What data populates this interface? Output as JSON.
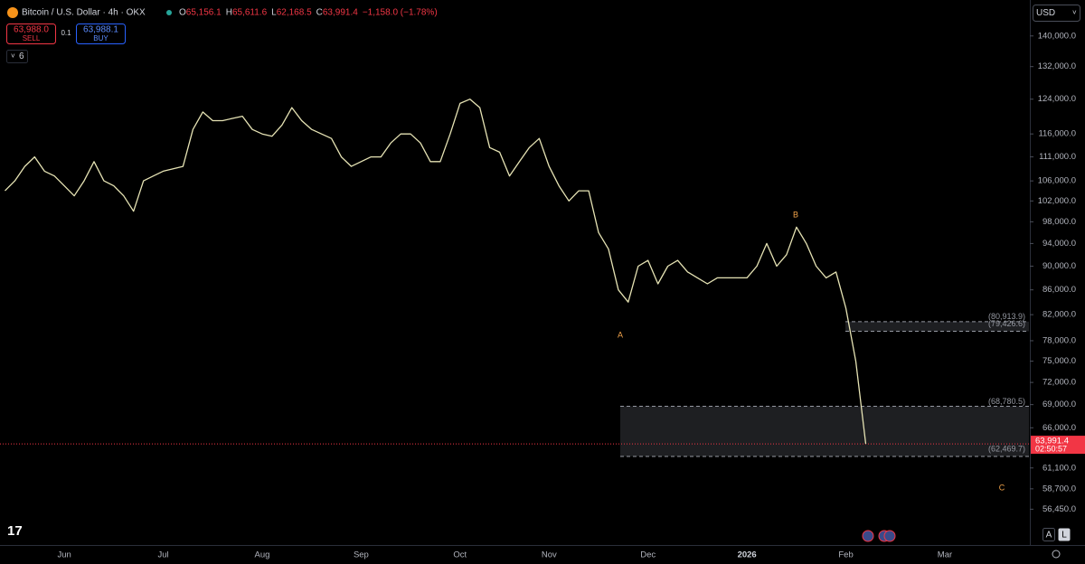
{
  "header": {
    "symbol": "Bitcoin / U.S. Dollar · 4h · OKX",
    "ohlc": [
      {
        "key": "O",
        "value": "65,156.1"
      },
      {
        "key": "H",
        "value": "65,611.6"
      },
      {
        "key": "L",
        "value": "62,168.5"
      },
      {
        "key": "C",
        "value": "63,991.4"
      }
    ],
    "change": "−1,158.0 (−1.78%)",
    "sell_price": "63,988.0",
    "sell": "SELL",
    "spread": "0.1",
    "buy_price": "63,988.1",
    "buy": "BUY",
    "indicators": "6",
    "currency": "USD",
    "buttons": [
      "A",
      "L"
    ]
  },
  "chart_data": {
    "type": "line",
    "log_scale": true,
    "grid": false,
    "color": "#e6e3b4",
    "categories": [
      null,
      null,
      null,
      null,
      null,
      null,
      "Jun",
      null,
      null,
      null,
      null,
      null,
      null,
      null,
      null,
      null,
      "Jul",
      null,
      null,
      null,
      null,
      null,
      null,
      null,
      null,
      null,
      "Aug",
      null,
      null,
      null,
      null,
      null,
      null,
      null,
      null,
      null,
      "Sep",
      null,
      null,
      null,
      null,
      null,
      null,
      null,
      null,
      null,
      "Oct",
      null,
      null,
      null,
      null,
      null,
      null,
      null,
      null,
      "Nov",
      null,
      null,
      null,
      null,
      null,
      null,
      null,
      null,
      null,
      "Dec",
      null,
      null,
      null,
      null,
      null,
      null,
      null,
      null,
      null,
      "2026",
      null,
      null,
      null,
      null,
      null,
      null,
      null,
      null,
      null,
      "Feb",
      null,
      null,
      null,
      null,
      null,
      null,
      null,
      null,
      null,
      "Mar",
      null,
      null,
      null,
      null,
      null,
      null,
      null,
      null
    ],
    "series": [
      {
        "name": "BTCUSD",
        "values": [
          104000,
          106000,
          109000,
          111000,
          108000,
          107000,
          105000,
          103000,
          106000,
          110000,
          106000,
          105000,
          103000,
          100000,
          106000,
          107000,
          108000,
          108500,
          109000,
          117000,
          121000,
          119000,
          119000,
          119500,
          120000,
          117000,
          116000,
          115500,
          118000,
          122000,
          119000,
          117000,
          116000,
          115000,
          111000,
          109000,
          110000,
          111000,
          111000,
          114000,
          116000,
          116000,
          114000,
          110000,
          110000,
          116000,
          123000,
          124000,
          122000,
          113000,
          112000,
          107000,
          110000,
          113000,
          115000,
          109000,
          105000,
          102000,
          104000,
          104000,
          96000,
          93000,
          86000,
          84000,
          90000,
          91000,
          87000,
          90000,
          91000,
          89000,
          88000,
          87000,
          88000,
          88000,
          88000,
          88000,
          90000,
          94000,
          90000,
          92000,
          97000,
          94000,
          90000,
          88000,
          89000,
          83000,
          75000,
          63991.4,
          null,
          null,
          null,
          null,
          null,
          null,
          null,
          null,
          null,
          null,
          null,
          null,
          null,
          null,
          null,
          null
        ]
      }
    ],
    "ylim": [
      52700,
      150000
    ],
    "yticks": [
      {
        "value": 140000,
        "label": "140,000.0"
      },
      {
        "value": 132000,
        "label": "132,000.0"
      },
      {
        "value": 124000,
        "label": "124,000.0"
      },
      {
        "value": 116000,
        "label": "116,000.0"
      },
      {
        "value": 111000,
        "label": "111,000.0"
      },
      {
        "value": 106000,
        "label": "106,000.0"
      },
      {
        "value": 102000,
        "label": "102,000.0"
      },
      {
        "value": 98000,
        "label": "98,000.0"
      },
      {
        "value": 94000,
        "label": "94,000.0"
      },
      {
        "value": 90000,
        "label": "90,000.0"
      },
      {
        "value": 86000,
        "label": "86,000.0"
      },
      {
        "value": 82000,
        "label": "82,000.0"
      },
      {
        "value": 78000,
        "label": "78,000.0"
      },
      {
        "value": 75000,
        "label": "75,000.0"
      },
      {
        "value": 72000,
        "label": "72,000.0"
      },
      {
        "value": 69000,
        "label": "69,000.0"
      },
      {
        "value": 66000,
        "label": "66,000.0"
      },
      {
        "value": 61100,
        "label": "61,100.0"
      },
      {
        "value": 58700,
        "label": "58,700.0"
      },
      {
        "value": 56450,
        "label": "56,450.0"
      }
    ],
    "zones": [
      {
        "top": {
          "value": 80913.9,
          "label": "(80,913.9)"
        },
        "bottom": {
          "value": 79426.6,
          "label": "(79,426.6)"
        }
      },
      {
        "top": {
          "value": 68780.5,
          "label": "(68,780.5)"
        },
        "bottom": {
          "value": 62469.7,
          "label": "(62,469.7)"
        }
      }
    ],
    "last_price": {
      "value": 63991.4,
      "label": "63,991.4"
    },
    "countdown": "02:50:57",
    "annotations": [
      "A",
      "B",
      "C"
    ]
  }
}
